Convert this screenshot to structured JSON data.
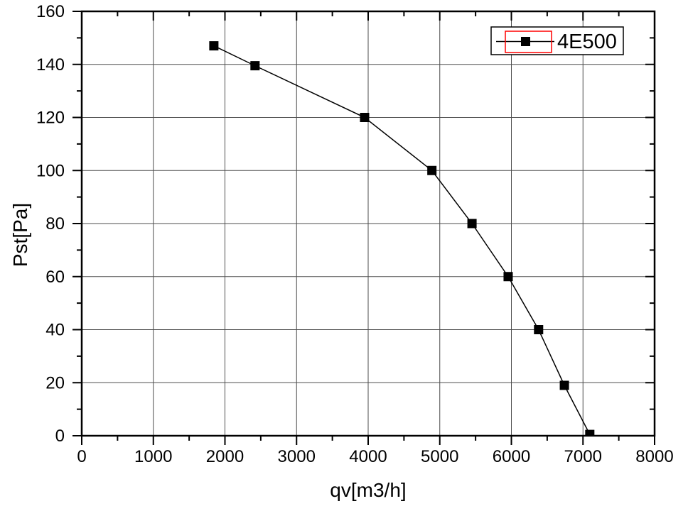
{
  "figure": {
    "background": "#ffffff"
  },
  "chart_data": {
    "type": "line",
    "title": "",
    "xlabel": "qv[m3/h]",
    "ylabel": "Pst[Pa]",
    "xlim": [
      0,
      8000
    ],
    "ylim": [
      0,
      160
    ],
    "x_major_ticks": [
      0,
      1000,
      2000,
      3000,
      4000,
      5000,
      6000,
      7000,
      8000
    ],
    "y_major_ticks": [
      0,
      20,
      40,
      60,
      80,
      100,
      120,
      140,
      160
    ],
    "x_minor_step": 500,
    "y_minor_step": 10,
    "grid": "major-solid",
    "grid_color": "#4d4d4d",
    "frame_color": "#000000",
    "legend": {
      "position": "top-right",
      "border_color": "#000000",
      "background": "#ffffff",
      "selection_highlight_color": "#ff0000",
      "entries": [
        {
          "label": "4E500",
          "marker": "filled-square",
          "marker_color": "#000000",
          "line_color": "#000000",
          "selected": true
        }
      ]
    },
    "series": [
      {
        "name": "4E500",
        "color": "#000000",
        "marker": "filled-square",
        "marker_size": 13,
        "points": [
          {
            "x": 1845,
            "y": 147
          },
          {
            "x": 2420,
            "y": 139.5
          },
          {
            "x": 3950,
            "y": 120
          },
          {
            "x": 4890,
            "y": 100
          },
          {
            "x": 5450,
            "y": 80
          },
          {
            "x": 5955,
            "y": 60
          },
          {
            "x": 6380,
            "y": 40
          },
          {
            "x": 6740,
            "y": 19
          },
          {
            "x": 7095,
            "y": 0.5
          }
        ]
      }
    ]
  }
}
